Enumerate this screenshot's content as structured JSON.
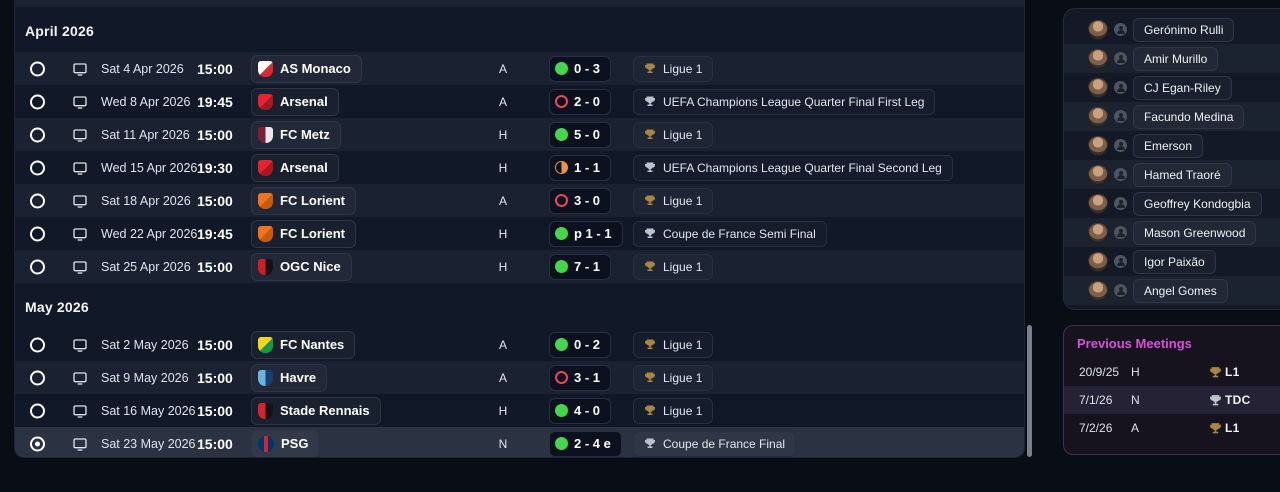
{
  "colors": {
    "win": "#44d64c",
    "loss": "#e84855",
    "draw": "#e9923f",
    "gold": "#a8863d",
    "silver": "#bcc2cc",
    "magenta": "#d94fd9",
    "scrollbar": "#798090"
  },
  "fixtures": {
    "sections": [
      {
        "header": "April 2026",
        "rows": [
          {
            "date": "Sat 4 Apr 2026",
            "time": "15:00",
            "team": "AS Monaco",
            "venue": "A",
            "result": "win",
            "score": "0 - 3",
            "competition": "Ligue 1",
            "trophy": "gold",
            "selected": false,
            "badge": {
              "shape": "shield",
              "split": "diag",
              "colors": [
                "#ffffff",
                "#e0262e"
              ]
            }
          },
          {
            "date": "Wed 8 Apr 2026",
            "time": "19:45",
            "team": "Arsenal",
            "venue": "A",
            "result": "loss",
            "score": "2 - 0",
            "competition": "UEFA Champions League Quarter Final First Leg",
            "trophy": "silver",
            "selected": false,
            "badge": {
              "shape": "shield",
              "split": "diag",
              "colors": [
                "#e8222e",
                "#a31a22"
              ]
            }
          },
          {
            "date": "Sat 11 Apr 2026",
            "time": "15:00",
            "team": "FC Metz",
            "venue": "H",
            "result": "win",
            "score": "5 - 0",
            "competition": "Ligue 1",
            "trophy": "gold",
            "selected": false,
            "badge": {
              "shape": "shield",
              "split": "vert",
              "colors": [
                "#7c2134",
                "#e8e8ee"
              ]
            }
          },
          {
            "date": "Wed 15 Apr 2026",
            "time": "19:30",
            "team": "Arsenal",
            "venue": "H",
            "result": "draw",
            "score": "1 - 1",
            "competition": "UEFA Champions League Quarter Final Second Leg",
            "trophy": "silver",
            "selected": false,
            "badge": {
              "shape": "shield",
              "split": "diag",
              "colors": [
                "#e8222e",
                "#a31a22"
              ]
            }
          },
          {
            "date": "Sat 18 Apr 2026",
            "time": "15:00",
            "team": "FC Lorient",
            "venue": "A",
            "result": "loss",
            "score": "3 - 0",
            "competition": "Ligue 1",
            "trophy": "gold",
            "selected": false,
            "badge": {
              "shape": "shield",
              "split": "diag",
              "colors": [
                "#f0741c",
                "#c85a0e"
              ]
            }
          },
          {
            "date": "Wed 22 Apr 2026",
            "time": "19:45",
            "team": "FC Lorient",
            "venue": "H",
            "result": "win",
            "score": "p 1 - 1",
            "competition": "Coupe de France Semi Final",
            "trophy": "silver",
            "selected": false,
            "badge": {
              "shape": "shield",
              "split": "diag",
              "colors": [
                "#f0741c",
                "#c85a0e"
              ]
            }
          },
          {
            "date": "Sat 25 Apr 2026",
            "time": "15:00",
            "team": "OGC Nice",
            "venue": "H",
            "result": "win",
            "score": "7 - 1",
            "competition": "Ligue 1",
            "trophy": "gold",
            "selected": false,
            "badge": {
              "shape": "shield",
              "split": "vert",
              "colors": [
                "#d01e28",
                "#141418"
              ]
            }
          }
        ]
      },
      {
        "header": "May 2026",
        "rows": [
          {
            "date": "Sat 2 May 2026",
            "time": "15:00",
            "team": "FC Nantes",
            "venue": "A",
            "result": "win",
            "score": "0 - 2",
            "competition": "Ligue 1",
            "trophy": "gold",
            "selected": false,
            "badge": {
              "shape": "shield",
              "split": "diag",
              "colors": [
                "#f6d51f",
                "#0e9b4a"
              ]
            }
          },
          {
            "date": "Sat 9 May 2026",
            "time": "15:00",
            "team": "Havre",
            "venue": "A",
            "result": "loss",
            "score": "3 - 1",
            "competition": "Ligue 1",
            "trophy": "gold",
            "selected": false,
            "badge": {
              "shape": "shield",
              "split": "vert",
              "colors": [
                "#6db3dd",
                "#173f70"
              ]
            }
          },
          {
            "date": "Sat 16 May 2026",
            "time": "15:00",
            "team": "Stade Rennais",
            "venue": "H",
            "result": "win",
            "score": "4 - 0",
            "competition": "Ligue 1",
            "trophy": "gold",
            "selected": false,
            "badge": {
              "shape": "shield",
              "split": "vert",
              "colors": [
                "#d8232a",
                "#141418"
              ]
            }
          },
          {
            "date": "Sat 23 May 2026",
            "time": "15:00",
            "team": "PSG",
            "venue": "N",
            "result": "win",
            "score": "2 - 4 e",
            "competition": "Coupe de France Final",
            "trophy": "silver",
            "selected": true,
            "badge": {
              "shape": "circle",
              "split": "stripe",
              "colors": [
                "#00366b",
                "#d8232a"
              ]
            }
          }
        ]
      }
    ]
  },
  "squad_panel": {
    "players": [
      {
        "name": "Gerónimo Rulli"
      },
      {
        "name": "Amir Murillo"
      },
      {
        "name": "CJ Egan-Riley"
      },
      {
        "name": "Facundo Medina"
      },
      {
        "name": "Emerson"
      },
      {
        "name": "Hamed Traoré"
      },
      {
        "name": "Geoffrey Kondogbia"
      },
      {
        "name": "Mason Greenwood"
      },
      {
        "name": "Igor Paixão"
      },
      {
        "name": "Angel Gomes"
      }
    ]
  },
  "previous_meetings": {
    "title": "Previous Meetings",
    "rows": [
      {
        "date": "20/9/25",
        "venue": "H",
        "competition": "L1",
        "trophy": "gold",
        "highlighted": false
      },
      {
        "date": "7/1/26",
        "venue": "N",
        "competition": "TDC",
        "trophy": "silver",
        "highlighted": true
      },
      {
        "date": "7/2/26",
        "venue": "A",
        "competition": "L1",
        "trophy": "gold",
        "highlighted": false
      }
    ]
  }
}
